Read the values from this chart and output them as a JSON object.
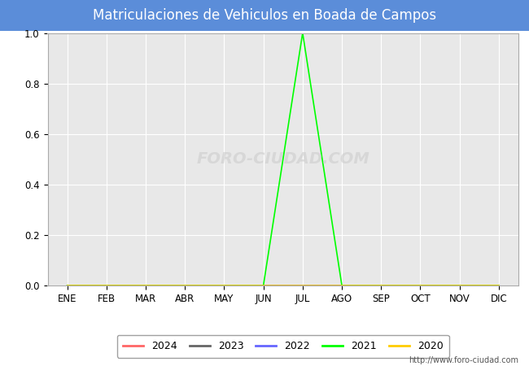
{
  "title": "Matriculaciones de Vehiculos en Boada de Campos",
  "title_bgcolor": "#5b8dd9",
  "title_color": "white",
  "months": [
    "ENE",
    "FEB",
    "MAR",
    "ABR",
    "MAY",
    "JUN",
    "JUL",
    "AGO",
    "SEP",
    "OCT",
    "NOV",
    "DIC"
  ],
  "ylim": [
    0.0,
    1.0
  ],
  "yticks": [
    0.0,
    0.2,
    0.4,
    0.6,
    0.8,
    1.0
  ],
  "series": [
    {
      "year": "2024",
      "color": "#ff6666",
      "data": [
        0,
        0,
        0,
        0,
        0,
        0,
        0,
        0,
        0,
        0,
        0,
        0
      ]
    },
    {
      "year": "2023",
      "color": "#666666",
      "data": [
        0,
        0,
        0,
        0,
        0,
        0,
        0,
        0,
        0,
        0,
        0,
        0
      ]
    },
    {
      "year": "2022",
      "color": "#6666ff",
      "data": [
        0,
        0,
        0,
        0,
        0,
        0,
        0,
        0,
        0,
        0,
        0,
        0
      ]
    },
    {
      "year": "2021",
      "color": "#00ff00",
      "data": [
        0,
        0,
        0,
        0,
        0,
        0,
        1.0,
        0,
        0,
        0,
        0,
        0
      ]
    },
    {
      "year": "2020",
      "color": "#ffcc00",
      "data": [
        0,
        0,
        0,
        0,
        0,
        0,
        0,
        0,
        0,
        0,
        0,
        0
      ]
    }
  ],
  "plot_bg_color": "#e8e8e8",
  "outer_bg_color": "#ffffff",
  "grid_color": "#ffffff",
  "watermark": "FORO-CIUDAD.COM",
  "url": "http://www.foro-ciudad.com"
}
